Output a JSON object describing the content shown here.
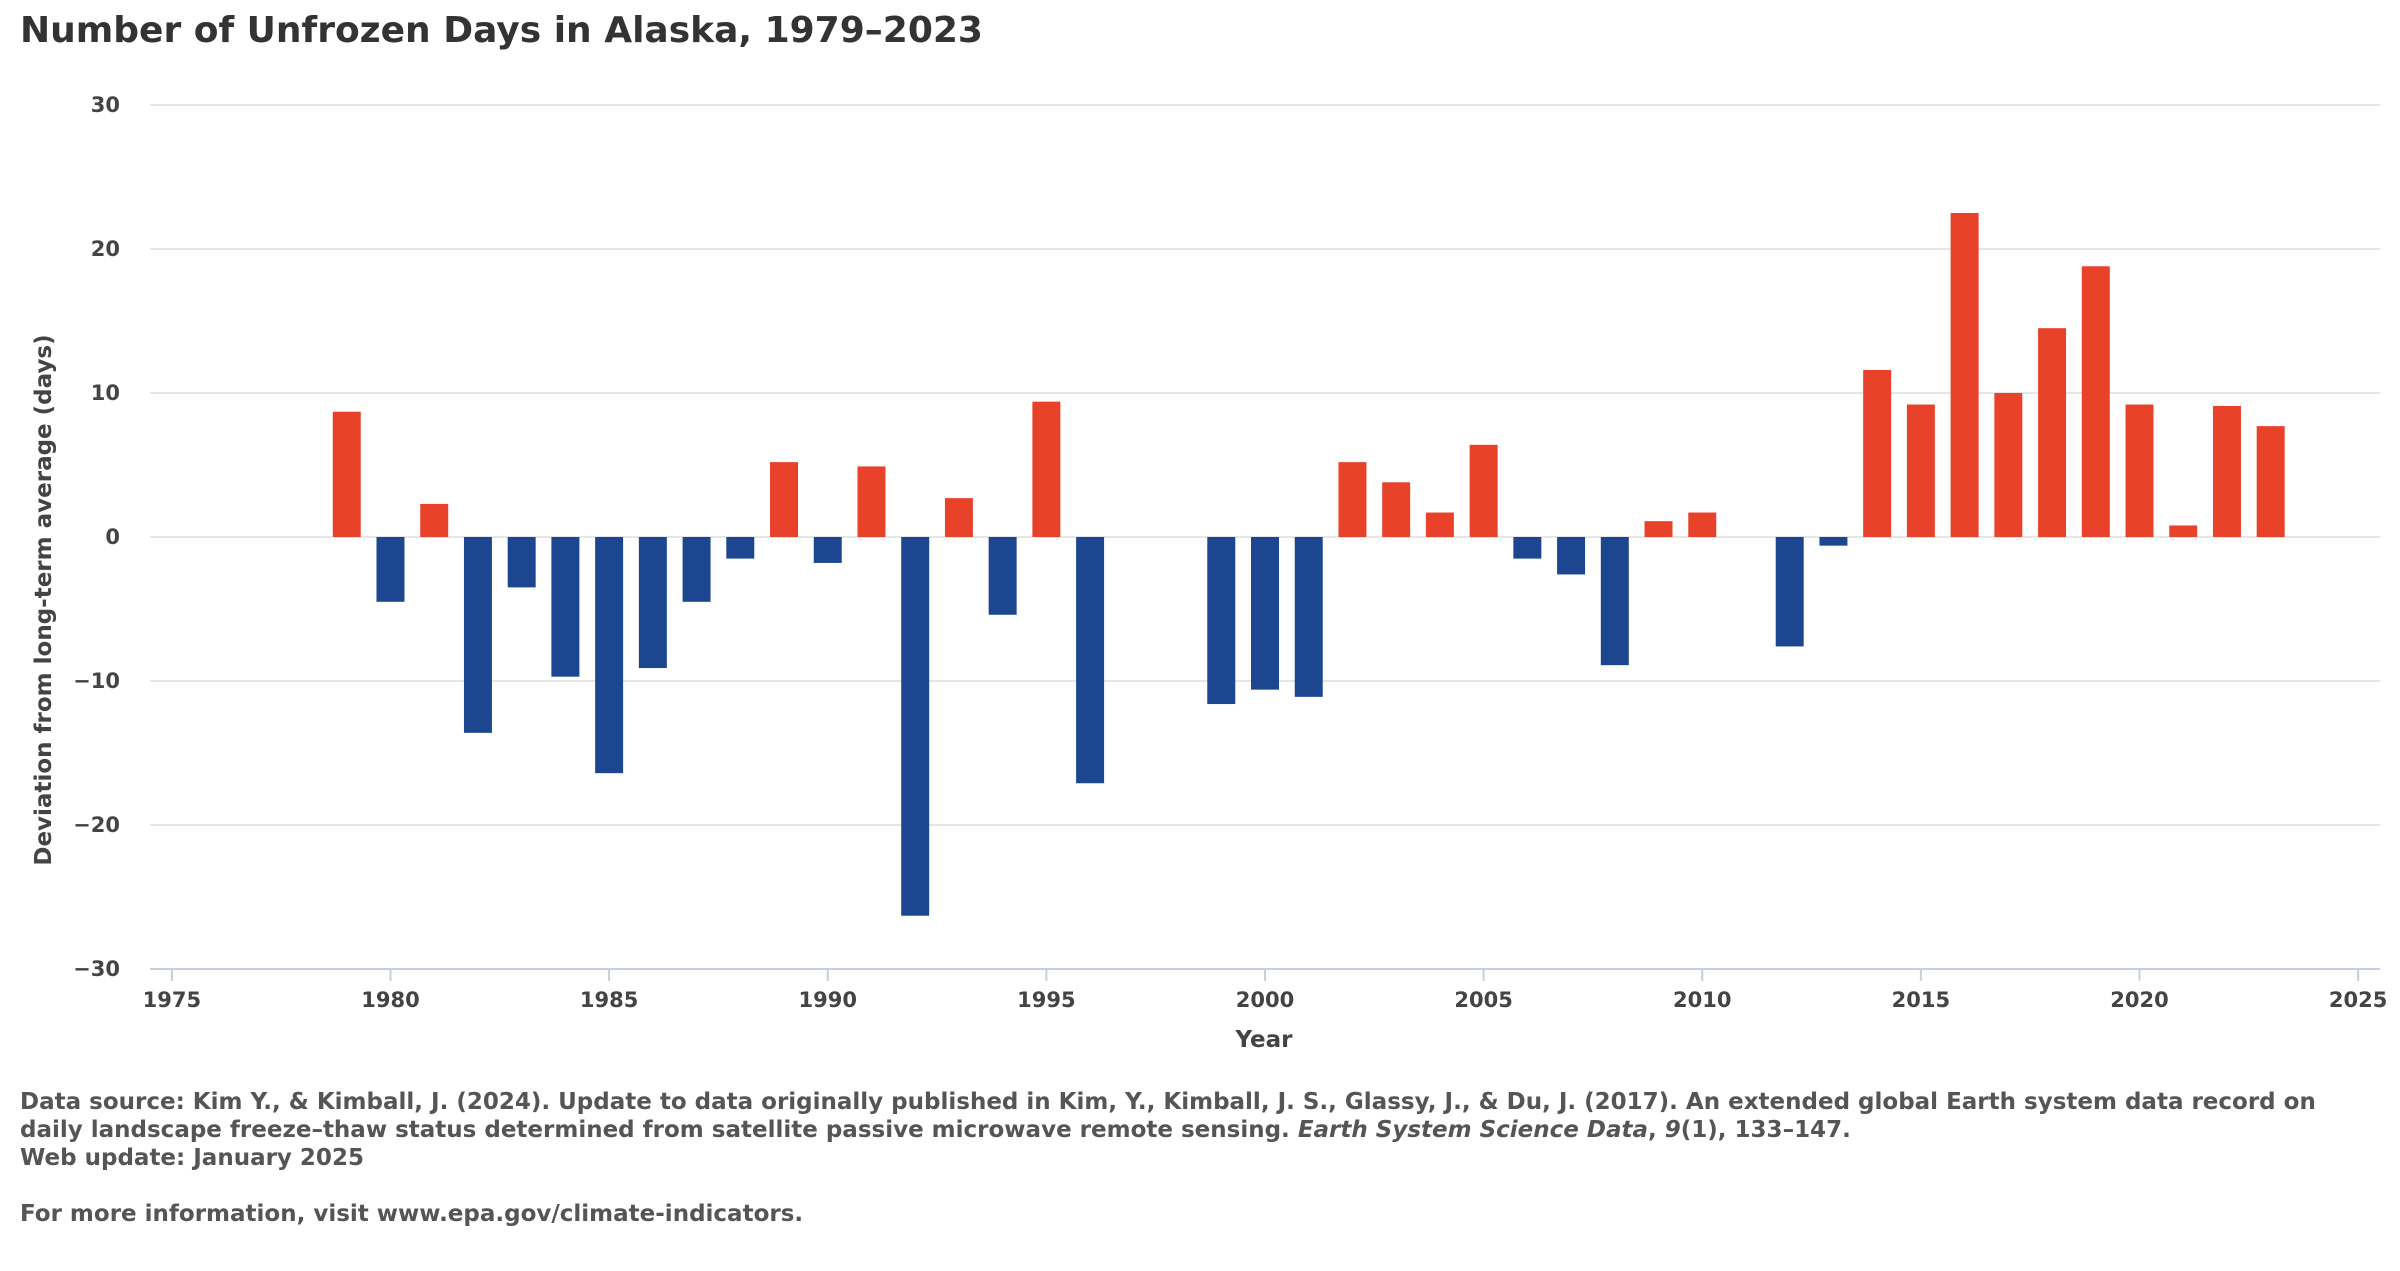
{
  "title": "Number of Unfrozen Days in Alaska, 1979–2023",
  "notes": {
    "source_prefix": "Data source: Kim Y., & Kimball, J. (2024). Update to data originally published in Kim, Y., Kimball, J. S., Glassy, J., & Du, J. (2017). An extended global Earth system data record on daily landscape freeze–thaw status determined from satellite passive microwave remote sensing. ",
    "source_journal": "Earth System Science Data",
    "source_sep": ", ",
    "source_volume": "9",
    "source_suffix": "(1), 133–147.",
    "web_update": "Web update: January 2025",
    "more_info": "For more information, visit www.epa.gov/climate-indicators."
  },
  "chart_data": {
    "type": "bar",
    "xlabel": "Year",
    "ylabel": "Deviation from long-term average (days)",
    "xlim": [
      1974.5,
      2025.5
    ],
    "ylim": [
      -30,
      30
    ],
    "x_ticks": [
      1975,
      1980,
      1985,
      1990,
      1995,
      2000,
      2005,
      2010,
      2015,
      2020,
      2025
    ],
    "y_ticks": [
      30,
      20,
      10,
      0,
      -10,
      -20,
      -30
    ],
    "grid": true,
    "colors": {
      "positive": "#e8432a",
      "negative": "#1c4690"
    },
    "x": [
      1979,
      1980,
      1981,
      1982,
      1983,
      1984,
      1985,
      1986,
      1987,
      1988,
      1989,
      1990,
      1991,
      1992,
      1993,
      1994,
      1995,
      1996,
      1997,
      1998,
      1999,
      2000,
      2001,
      2002,
      2003,
      2004,
      2005,
      2006,
      2007,
      2008,
      2009,
      2010,
      2011,
      2012,
      2013,
      2014,
      2015,
      2016,
      2017,
      2018,
      2019,
      2020,
      2021,
      2022,
      2023
    ],
    "values": [
      8.7,
      -4.5,
      2.3,
      -13.6,
      -3.5,
      -9.7,
      -16.4,
      -9.1,
      -4.5,
      -1.5,
      5.2,
      -1.8,
      4.9,
      -26.3,
      2.7,
      -5.4,
      9.4,
      -17.1,
      0,
      0,
      -11.6,
      -10.6,
      -11.1,
      5.2,
      3.8,
      1.7,
      6.4,
      -1.5,
      -2.6,
      -8.9,
      1.1,
      1.7,
      0,
      -7.6,
      -0.6,
      11.6,
      9.2,
      22.5,
      10.0,
      14.5,
      18.8,
      9.2,
      0.8,
      9.1,
      7.7
    ]
  }
}
